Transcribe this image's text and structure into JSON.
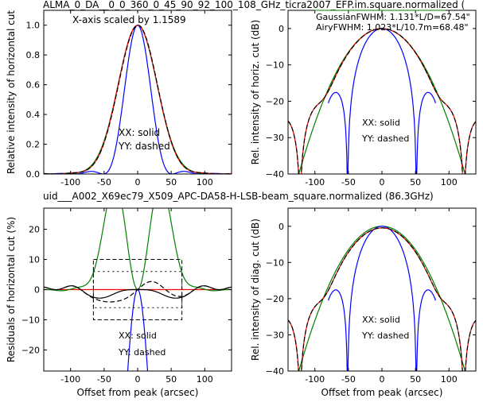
{
  "title_top": "ALMA_0_DA__0_0_360_0_45_90_92_100_108_GHz_ticra2007_EFP.im.square.normalized (",
  "title_mid": "uid___A002_X69ec79_X509_APC-DA58-H-LSB-beam_square.normalized (86.3GHz)",
  "colors": {
    "xx": "#ff0000",
    "yy": "#000000",
    "gauss": "#008000",
    "airy": "#0000ff"
  },
  "chart_data": [
    {
      "type": "line",
      "ylabel": "Relative intensity of horizontal cut",
      "xlim": [
        -140,
        140
      ],
      "ylim": [
        0,
        1.1
      ],
      "xticks": [
        "-100",
        "-50",
        "0",
        "50",
        "100"
      ],
      "yticks": [
        "0.0",
        "0.2",
        "0.4",
        "0.6",
        "0.8",
        "1.0"
      ],
      "annotations": [
        "X-axis scaled by 1.1589",
        "XX: solid",
        "YY: dashed"
      ]
    },
    {
      "type": "line",
      "ylabel": "Rel. intensity of horiz. cut (dB)",
      "xlim": [
        -140,
        140
      ],
      "ylim": [
        -40,
        5
      ],
      "xticks": [
        "-100",
        "-50",
        "0",
        "50",
        "100"
      ],
      "yticks": [
        "0",
        "−10",
        "−20",
        "−30",
        "−40"
      ],
      "annotations": [
        "GaussianFWHM: 1.131*L/D=67.54\"",
        "AiryFWHM: 1.023*L/10.7m=68.48\"",
        "XX: solid",
        "YY: dashed"
      ]
    },
    {
      "type": "line",
      "xlabel": "Offset from peak (arcsec)",
      "ylabel": "Residuals of horizontal cut (%)",
      "xlim": [
        -140,
        140
      ],
      "ylim": [
        -27,
        27
      ],
      "xticks": [
        "-100",
        "-50",
        "0",
        "50",
        "100"
      ],
      "yticks": [
        "20",
        "10",
        "0",
        "−10",
        "−20"
      ],
      "annotations": [
        "XX: solid",
        "YY: dashed"
      ]
    },
    {
      "type": "line",
      "xlabel": "Offset from peak (arcsec)",
      "ylabel": "Rel. intensity of diag. cut (dB)",
      "xlim": [
        -140,
        140
      ],
      "ylim": [
        -40,
        5
      ],
      "xticks": [
        "-100",
        "-50",
        "0",
        "50",
        "100"
      ],
      "yticks": [
        "0",
        "−10",
        "−20",
        "−30",
        "−40"
      ],
      "annotations": [
        "XX: solid",
        "YY: dashed"
      ]
    }
  ]
}
